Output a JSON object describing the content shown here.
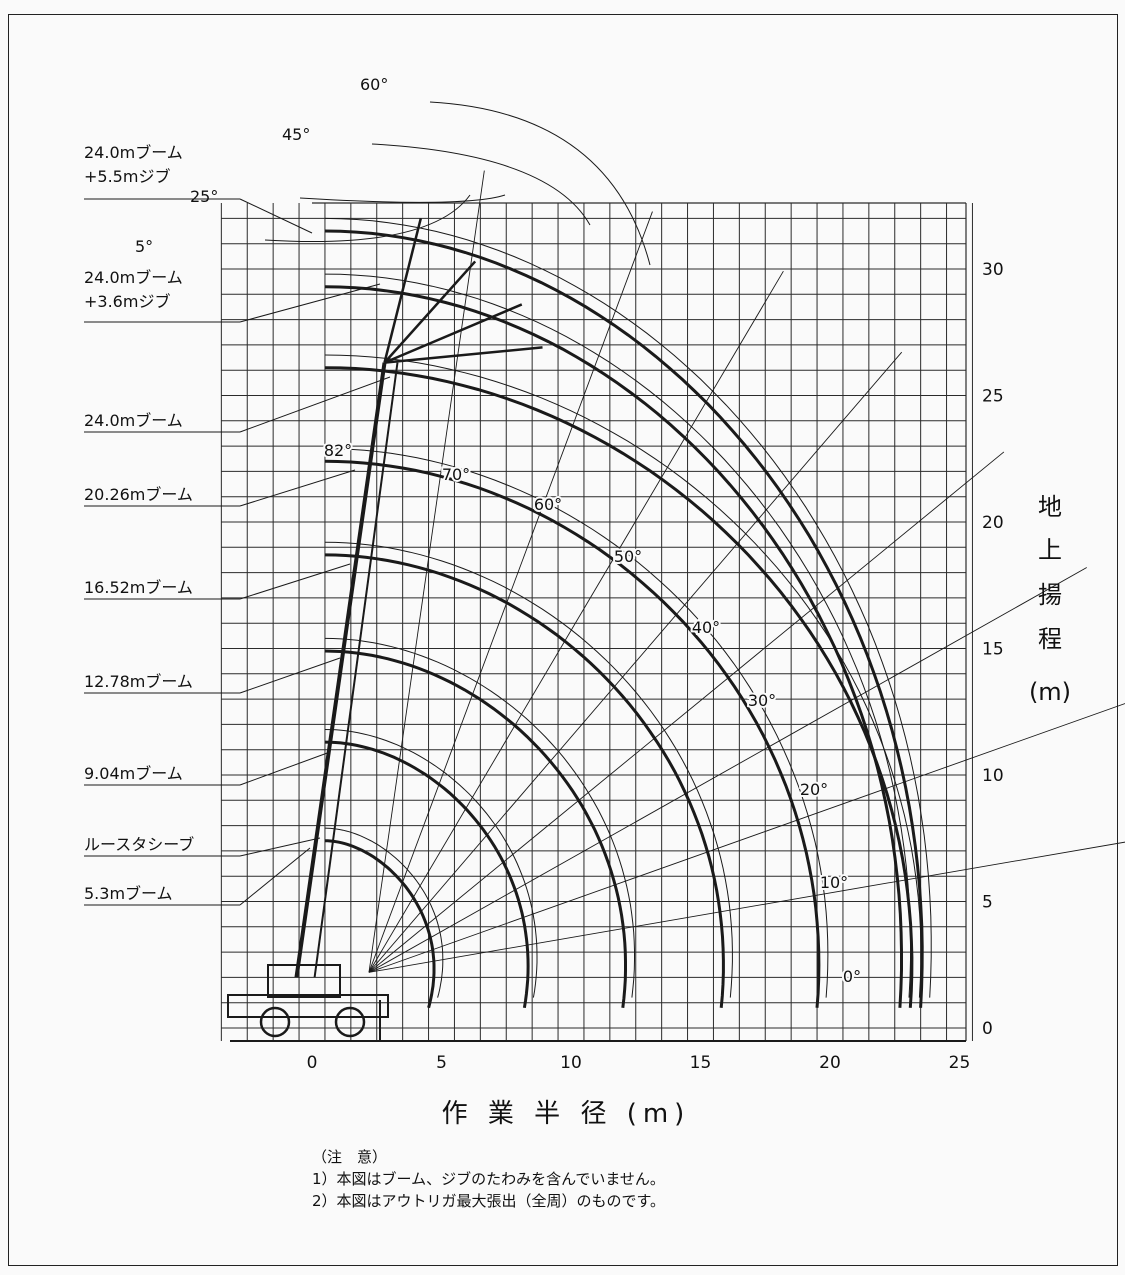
{
  "chart_data": {
    "type": "line",
    "xlabel": "作 業 半 径 (m)",
    "ylabel_chars": [
      "地",
      "上",
      "揚",
      "程",
      "(m)"
    ],
    "xticks": [
      "0",
      "5",
      "10",
      "15",
      "20",
      "25"
    ],
    "yticks": [
      "0",
      "5",
      "10",
      "15",
      "20",
      "25",
      "30"
    ],
    "xlim": [
      -3.5,
      25
    ],
    "ylim": [
      -0.5,
      33
    ],
    "grid": true,
    "booms": [
      {
        "name": "5.3mブーム",
        "tip_height": 7.3,
        "max_radius": 4.5
      },
      {
        "name": "ルースタシーブ",
        "tip_height": 8.3
      },
      {
        "name": "9.04mブーム",
        "tip_height": 11.2,
        "max_radius": 8.2
      },
      {
        "name": "12.78mブーム",
        "tip_height": 14.8,
        "max_radius": 12.0
      },
      {
        "name": "16.52mブーム",
        "tip_height": 18.6,
        "max_radius": 15.8
      },
      {
        "name": "20.26mブーム",
        "tip_height": 22.3,
        "max_radius": 19.5
      },
      {
        "name": "24.0mブーム",
        "tip_height": 26.0,
        "max_radius": 23.1
      },
      {
        "name": "24.0mブーム\n+3.6mジブ",
        "tip_height": 29.2,
        "max_radius": 22.7
      },
      {
        "name": "24.0mブーム\n+5.5mジブ",
        "tip_height": 31.4,
        "max_radius": 23.5
      }
    ],
    "boom_angles": [
      "82°",
      "70°",
      "60°",
      "50°",
      "40°",
      "30°",
      "20°",
      "10°",
      "0°"
    ],
    "jib_offsets": [
      "60°",
      "45°",
      "25°",
      "5°"
    ]
  },
  "notes": {
    "heading": "（注　意）",
    "items": [
      "1）本図はブーム、ジブのたわみを含んでいません。",
      "2）本図はアウトリガ最大張出（全周）のものです。"
    ]
  },
  "colors": {
    "line": "#1a1a1a",
    "grid": "#2b2b2b",
    "background": "#fafafa"
  }
}
